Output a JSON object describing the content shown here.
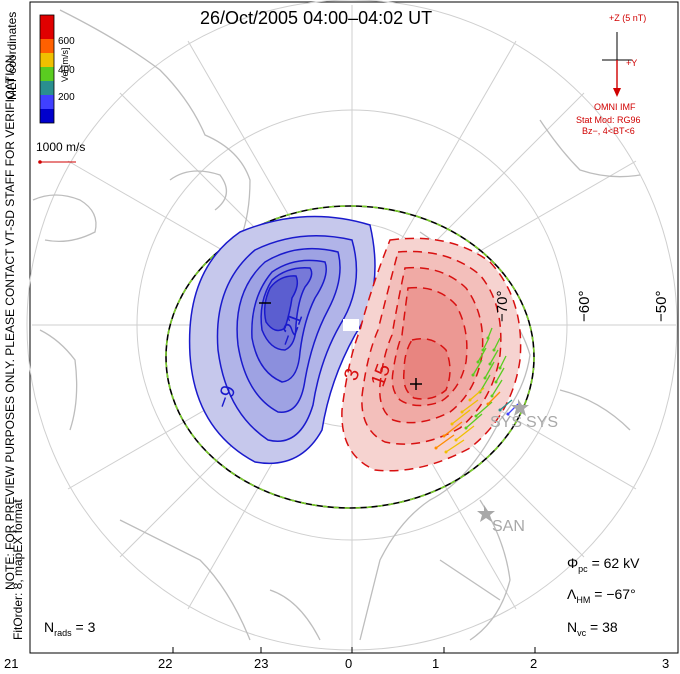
{
  "title": "26/Oct/2005 04:00–04:02 UT",
  "left_notes": {
    "coords": "MLT coordinates",
    "staff": "NOTE: FOR PREVIEW PURPOSES ONLY. PLEASE CONTACT VT-SD STAFF FOR VERIFICATION.",
    "fit": "FitOrder: 8, mapEX format"
  },
  "legend": {
    "axis_label": "Vel [m/s]",
    "ticks": [
      "600",
      "400",
      "200"
    ],
    "colors": [
      "#0000cc",
      "#4040ff",
      "#2a8f8f",
      "#5acc20",
      "#f0c000",
      "#ff6000",
      "#e00000"
    ],
    "scale_label": "1000 m/s"
  },
  "imf": {
    "z_label": "+Z (5 nT)",
    "y_label": "+Y",
    "omni": "OMNI IMF",
    "model": "Stat Mod: RG96",
    "condition": "Bz−, 4<BT<6"
  },
  "contours": {
    "negative_labels": [
      "−21",
      "−9"
    ],
    "positive_labels": [
      "3",
      "15"
    ],
    "negative_color": "#1a1acc",
    "positive_color": "#d81010",
    "boundary_color": "#7acc2a"
  },
  "latitudes": [
    "−50°",
    "−60°",
    "−70°"
  ],
  "stations": [
    "SYS",
    "SYS",
    "SAN"
  ],
  "mlt_labels": [
    "21",
    "22",
    "23",
    "0",
    "1",
    "2",
    "3"
  ],
  "stats": {
    "phi": "= 62 kV",
    "lambda": "= −67°",
    "nvc": "= 38",
    "nrads": "= 3"
  }
}
